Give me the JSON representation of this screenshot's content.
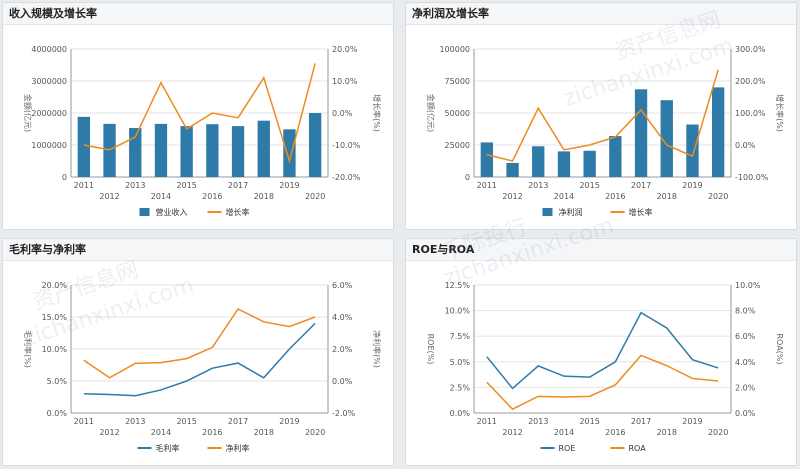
{
  "colors": {
    "bar": "#2e7aa8",
    "line_orange": "#ef8a1d",
    "line_blue": "#2e7aa8",
    "grid": "#e6e6e6",
    "axis_text": "#555555"
  },
  "watermark": [
    "资产信息网",
    "zichanxinxi.com",
    "千际投行"
  ],
  "chart_data": [
    {
      "id": "p1",
      "type": "bar",
      "title": "收入规模及增长率",
      "categories": [
        "2011",
        "2012",
        "2013",
        "2014",
        "2015",
        "2016",
        "2017",
        "2018",
        "2019",
        "2020"
      ],
      "series": [
        {
          "name": "营业收入",
          "kind": "bar",
          "axis": "left",
          "values": [
            1880000,
            1660000,
            1530000,
            1660000,
            1590000,
            1650000,
            1590000,
            1760000,
            1490000,
            2000000
          ]
        },
        {
          "name": "增长率",
          "kind": "line",
          "axis": "right",
          "values": [
            -10.0,
            -11.5,
            -7.5,
            9.5,
            -5.0,
            0.0,
            -1.5,
            11.0,
            -15.0,
            15.5
          ]
        }
      ],
      "left_axis": {
        "label": "金额(亿元)",
        "min": 0,
        "max": 4000000,
        "ticks": [
          "0",
          "1000000",
          "2000000",
          "3000000",
          "4000000"
        ]
      },
      "right_axis": {
        "label": "增长率(%)",
        "min": -20,
        "max": 20,
        "ticks": [
          "-20.0%",
          "-10.0%",
          "0.0%",
          "10.0%",
          "20.0%"
        ]
      }
    },
    {
      "id": "p2",
      "type": "bar",
      "title": "净利润及增长率",
      "categories": [
        "2011",
        "2012",
        "2013",
        "2014",
        "2015",
        "2016",
        "2017",
        "2018",
        "2019",
        "2020"
      ],
      "series": [
        {
          "name": "净利润",
          "kind": "bar",
          "axis": "left",
          "values": [
            27000,
            11000,
            24000,
            20000,
            20500,
            32000,
            68500,
            60000,
            41000,
            70000
          ]
        },
        {
          "name": "增长率",
          "kind": "line",
          "axis": "right",
          "values": [
            -30,
            -50,
            115,
            -15,
            0,
            25,
            110,
            0,
            -35,
            235
          ]
        }
      ],
      "left_axis": {
        "label": "金额(亿元)",
        "min": 0,
        "max": 100000,
        "ticks": [
          "0",
          "25000",
          "50000",
          "75000",
          "100000"
        ]
      },
      "right_axis": {
        "label": "增长率(%)",
        "min": -100,
        "max": 300,
        "ticks": [
          "-100.0%",
          "0.0%",
          "100.0%",
          "200.0%",
          "300.0%"
        ]
      }
    },
    {
      "id": "p3",
      "type": "line",
      "title": "毛利率与净利率",
      "categories": [
        "2011",
        "2012",
        "2013",
        "2014",
        "2015",
        "2016",
        "2017",
        "2018",
        "2019",
        "2020"
      ],
      "series": [
        {
          "name": "毛利率",
          "kind": "line",
          "color": "blue",
          "axis": "left",
          "values": [
            3.0,
            2.9,
            2.7,
            3.6,
            5.0,
            7.0,
            7.8,
            5.5,
            10.0,
            14.0
          ]
        },
        {
          "name": "净利率",
          "kind": "line",
          "color": "orange",
          "axis": "right",
          "values": [
            1.3,
            0.2,
            1.1,
            1.15,
            1.4,
            2.1,
            4.5,
            3.7,
            3.4,
            4.0
          ]
        }
      ],
      "left_axis": {
        "label": "毛利率(%)",
        "min": 0,
        "max": 20,
        "ticks": [
          "0.0%",
          "5.0%",
          "10.0%",
          "15.0%",
          "20.0%"
        ]
      },
      "right_axis": {
        "label": "净利率(%)",
        "min": -2,
        "max": 6,
        "ticks": [
          "-2.0%",
          "0.0%",
          "2.0%",
          "4.0%",
          "6.0%"
        ]
      }
    },
    {
      "id": "p4",
      "type": "line",
      "title": "ROE与ROA",
      "categories": [
        "2011",
        "2012",
        "2013",
        "2014",
        "2015",
        "2016",
        "2017",
        "2018",
        "2019",
        "2020"
      ],
      "series": [
        {
          "name": "ROE",
          "kind": "line",
          "color": "blue",
          "axis": "left",
          "values": [
            5.5,
            2.4,
            4.6,
            3.6,
            3.5,
            5.0,
            9.8,
            8.3,
            5.2,
            4.4
          ]
        },
        {
          "name": "ROA",
          "kind": "line",
          "color": "orange",
          "axis": "right",
          "values": [
            2.4,
            0.3,
            1.3,
            1.25,
            1.3,
            2.2,
            4.5,
            3.7,
            2.7,
            2.5
          ]
        }
      ],
      "left_axis": {
        "label": "ROE(%)",
        "min": 0,
        "max": 12.5,
        "ticks": [
          "0.0%",
          "2.5%",
          "5.0%",
          "7.5%",
          "10.0%",
          "12.5%"
        ]
      },
      "right_axis": {
        "label": "ROA(%)",
        "min": 0,
        "max": 10,
        "ticks": [
          "0.0%",
          "2.0%",
          "4.0%",
          "6.0%",
          "8.0%",
          "10.0%"
        ]
      }
    }
  ]
}
